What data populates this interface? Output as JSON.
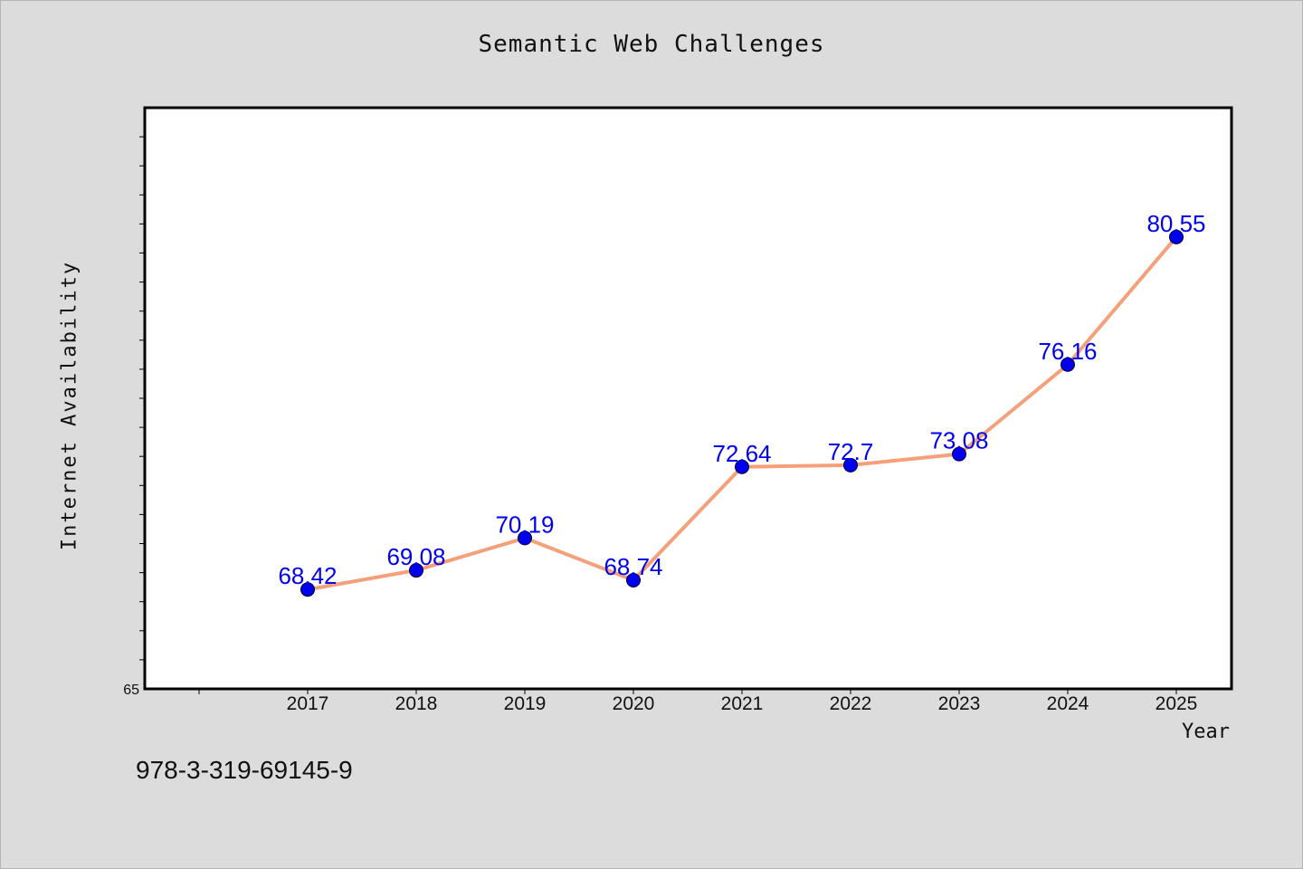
{
  "chart_data": {
    "type": "line",
    "title": "Semantic Web Challenges",
    "xlabel": "Year",
    "ylabel": "Internet Availability",
    "categories": [
      "2017",
      "2018",
      "2019",
      "2020",
      "2021",
      "2022",
      "2023",
      "2024",
      "2025"
    ],
    "series": [
      {
        "values": [
          68.42,
          69.08,
          70.19,
          68.74,
          72.64,
          72.7,
          73.08,
          76.16,
          80.55
        ]
      }
    ],
    "data_labels": [
      "68.42",
      "69.08",
      "70.19",
      "68.74",
      "72.64",
      "72.7",
      "73.08",
      "76.16",
      "80.55"
    ],
    "ylim": [
      65,
      85
    ],
    "yticks_labeled": [
      "65"
    ],
    "grid": false,
    "legend": "none",
    "line_color": "#f4a07a",
    "marker_color": "#0000ee",
    "label_color": "#0000ee"
  },
  "footer": {
    "isbn": "978-3-319-69145-9"
  }
}
